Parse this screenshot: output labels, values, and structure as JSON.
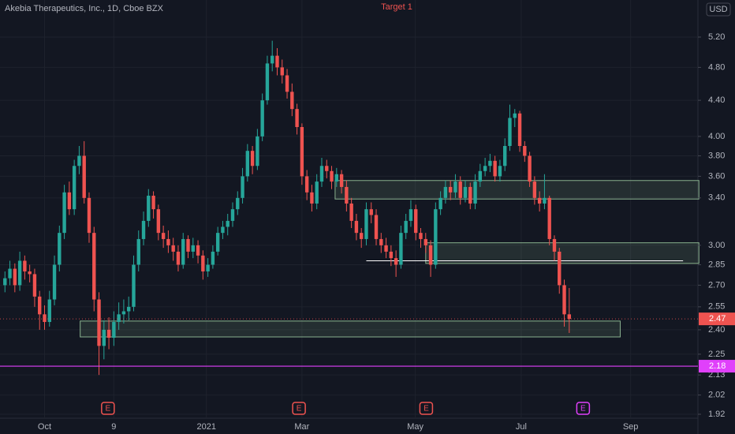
{
  "chart_data": {
    "type": "candlestick",
    "title": "Akebia Therapeutics, Inc., 1D, Cboe BZX",
    "annotation": "Target 1",
    "currency": "USD",
    "log_scale": true,
    "grid": true,
    "up_color": "#26a69a",
    "down_color": "#ef5350",
    "zone_color": "#a5d6a7",
    "xlim": [
      -1,
      140
    ],
    "ylim": [
      1.9,
      5.735
    ],
    "yticks": [
      {
        "value": 5.2,
        "label": "5.20"
      },
      {
        "value": 4.8,
        "label": "4.80"
      },
      {
        "value": 4.4,
        "label": "4.40"
      },
      {
        "value": 4.0,
        "label": "4.00"
      },
      {
        "value": 3.8,
        "label": "3.80"
      },
      {
        "value": 3.6,
        "label": "3.60"
      },
      {
        "value": 3.4,
        "label": "3.40"
      },
      {
        "value": 3.0,
        "label": "3.00"
      },
      2.85,
      {
        "value": 2.7,
        "label": "2.70"
      },
      2.55,
      {
        "value": 2.4,
        "label": "2.40"
      },
      2.25,
      2.13,
      2.02,
      1.92
    ],
    "xticks": [
      {
        "value": 8,
        "label": "Oct"
      },
      {
        "value": 22,
        "label": "9"
      },
      {
        "value": 40.7,
        "label": "2021"
      },
      {
        "value": 60,
        "label": "Mar"
      },
      {
        "value": 82.9,
        "label": "May"
      },
      {
        "value": 104.3,
        "label": "Jul"
      },
      {
        "value": 126.4,
        "label": "Sep"
      }
    ],
    "candles": [
      [
        2.7,
        2.8,
        2.65,
        2.75
      ],
      [
        2.75,
        2.88,
        2.7,
        2.82
      ],
      [
        2.82,
        2.86,
        2.65,
        2.7
      ],
      [
        2.7,
        2.95,
        2.66,
        2.88
      ],
      [
        2.88,
        2.92,
        2.74,
        2.8
      ],
      [
        2.8,
        2.85,
        2.72,
        2.78
      ],
      [
        2.78,
        2.82,
        2.55,
        2.62
      ],
      [
        2.62,
        2.66,
        2.4,
        2.5
      ],
      [
        2.5,
        2.56,
        2.4,
        2.45
      ],
      [
        2.45,
        2.66,
        2.42,
        2.6
      ],
      [
        2.6,
        2.92,
        2.56,
        2.85
      ],
      [
        2.85,
        3.16,
        2.8,
        3.1
      ],
      [
        3.1,
        3.52,
        3.05,
        3.45
      ],
      [
        3.45,
        3.55,
        3.25,
        3.3
      ],
      [
        3.3,
        3.76,
        3.25,
        3.7
      ],
      [
        3.7,
        3.9,
        3.62,
        3.8
      ],
      [
        3.8,
        3.95,
        3.35,
        3.4
      ],
      [
        3.4,
        3.45,
        3.02,
        3.1
      ],
      [
        3.1,
        3.15,
        2.52,
        2.6
      ],
      [
        2.6,
        2.65,
        2.13,
        2.3
      ],
      [
        2.3,
        2.46,
        2.22,
        2.4
      ],
      [
        2.4,
        2.48,
        2.28,
        2.35
      ],
      [
        2.35,
        2.52,
        2.3,
        2.45
      ],
      [
        2.45,
        2.58,
        2.4,
        2.5
      ],
      [
        2.5,
        2.6,
        2.44,
        2.52
      ],
      [
        2.52,
        2.62,
        2.46,
        2.55
      ],
      [
        2.55,
        2.92,
        2.52,
        2.85
      ],
      [
        2.85,
        3.12,
        2.8,
        3.05
      ],
      [
        3.05,
        3.28,
        3.0,
        3.2
      ],
      [
        3.2,
        3.48,
        3.15,
        3.42
      ],
      [
        3.42,
        3.46,
        3.22,
        3.3
      ],
      [
        3.3,
        3.34,
        3.04,
        3.1
      ],
      [
        3.1,
        3.16,
        2.98,
        3.05
      ],
      [
        3.05,
        3.12,
        2.94,
        3.0
      ],
      [
        3.0,
        3.06,
        2.88,
        2.95
      ],
      [
        2.95,
        3.0,
        2.8,
        2.85
      ],
      [
        2.85,
        3.1,
        2.82,
        3.05
      ],
      [
        3.05,
        3.08,
        2.9,
        2.95
      ],
      [
        2.95,
        3.06,
        2.9,
        3.0
      ],
      [
        3.0,
        3.04,
        2.86,
        2.92
      ],
      [
        2.92,
        2.96,
        2.74,
        2.8
      ],
      [
        2.8,
        2.9,
        2.76,
        2.85
      ],
      [
        2.85,
        3.0,
        2.82,
        2.95
      ],
      [
        2.95,
        3.15,
        2.92,
        3.1
      ],
      [
        3.1,
        3.2,
        3.05,
        3.15
      ],
      [
        3.15,
        3.26,
        3.08,
        3.2
      ],
      [
        3.2,
        3.36,
        3.15,
        3.3
      ],
      [
        3.3,
        3.46,
        3.25,
        3.4
      ],
      [
        3.4,
        3.68,
        3.35,
        3.6
      ],
      [
        3.6,
        3.92,
        3.55,
        3.85
      ],
      [
        3.85,
        3.9,
        3.62,
        3.7
      ],
      [
        3.7,
        4.08,
        3.66,
        4.0
      ],
      [
        4.0,
        4.48,
        3.95,
        4.4
      ],
      [
        4.4,
        4.95,
        4.35,
        4.85
      ],
      [
        4.85,
        5.15,
        4.75,
        4.95
      ],
      [
        4.95,
        5.05,
        4.7,
        4.8
      ],
      [
        4.8,
        4.9,
        4.6,
        4.7
      ],
      [
        4.7,
        4.78,
        4.42,
        4.5
      ],
      [
        4.5,
        4.6,
        4.22,
        4.3
      ],
      [
        4.3,
        4.36,
        4.02,
        4.1
      ],
      [
        4.1,
        4.14,
        3.52,
        3.6
      ],
      [
        3.6,
        3.66,
        3.38,
        3.45
      ],
      [
        3.45,
        3.52,
        3.28,
        3.35
      ],
      [
        3.35,
        3.62,
        3.3,
        3.55
      ],
      [
        3.55,
        3.78,
        3.5,
        3.7
      ],
      [
        3.7,
        3.76,
        3.58,
        3.65
      ],
      [
        3.65,
        3.7,
        3.48,
        3.55
      ],
      [
        3.55,
        3.68,
        3.5,
        3.62
      ],
      [
        3.62,
        3.66,
        3.44,
        3.5
      ],
      [
        3.5,
        3.56,
        3.28,
        3.35
      ],
      [
        3.35,
        3.4,
        3.14,
        3.2
      ],
      [
        3.2,
        3.26,
        3.04,
        3.1
      ],
      [
        3.1,
        3.14,
        2.98,
        3.05
      ],
      [
        3.05,
        3.36,
        3.0,
        3.3
      ],
      [
        3.3,
        3.36,
        3.18,
        3.25
      ],
      [
        3.25,
        3.3,
        3.0,
        3.05
      ],
      [
        3.05,
        3.1,
        2.94,
        3.0
      ],
      [
        3.0,
        3.06,
        2.9,
        2.95
      ],
      [
        2.95,
        3.0,
        2.84,
        2.9
      ],
      [
        2.9,
        2.96,
        2.76,
        2.85
      ],
      [
        2.85,
        3.16,
        2.82,
        3.1
      ],
      [
        3.1,
        3.26,
        3.05,
        3.2
      ],
      [
        3.2,
        3.38,
        3.15,
        3.3
      ],
      [
        3.3,
        3.34,
        3.04,
        3.1
      ],
      [
        3.1,
        3.14,
        2.98,
        3.05
      ],
      [
        3.05,
        3.1,
        2.94,
        3.0
      ],
      [
        3.0,
        3.04,
        2.76,
        2.85
      ],
      [
        2.85,
        3.36,
        2.82,
        3.3
      ],
      [
        3.3,
        3.46,
        3.25,
        3.4
      ],
      [
        3.4,
        3.56,
        3.35,
        3.5
      ],
      [
        3.5,
        3.56,
        3.38,
        3.45
      ],
      [
        3.45,
        3.62,
        3.4,
        3.55
      ],
      [
        3.55,
        3.6,
        3.34,
        3.4
      ],
      [
        3.4,
        3.56,
        3.36,
        3.5
      ],
      [
        3.5,
        3.54,
        3.3,
        3.35
      ],
      [
        3.35,
        3.62,
        3.3,
        3.55
      ],
      [
        3.55,
        3.72,
        3.5,
        3.65
      ],
      [
        3.65,
        3.78,
        3.6,
        3.7
      ],
      [
        3.7,
        3.82,
        3.64,
        3.75
      ],
      [
        3.75,
        3.8,
        3.55,
        3.6
      ],
      [
        3.6,
        3.76,
        3.55,
        3.7
      ],
      [
        3.7,
        3.98,
        3.65,
        3.9
      ],
      [
        3.9,
        4.35,
        3.85,
        4.2
      ],
      [
        4.2,
        4.3,
        4.1,
        4.25
      ],
      [
        4.25,
        4.28,
        3.84,
        3.9
      ],
      [
        3.9,
        3.95,
        3.74,
        3.8
      ],
      [
        3.8,
        3.84,
        3.5,
        3.55
      ],
      [
        3.55,
        3.6,
        3.34,
        3.4
      ],
      [
        3.4,
        3.46,
        3.28,
        3.35
      ],
      [
        3.35,
        3.62,
        3.3,
        3.4
      ],
      [
        3.4,
        3.42,
        3.0,
        3.05
      ],
      [
        3.05,
        3.08,
        2.88,
        2.95
      ],
      [
        2.95,
        2.98,
        2.64,
        2.7
      ],
      [
        2.7,
        2.74,
        2.42,
        2.5
      ],
      [
        2.5,
        2.68,
        2.38,
        2.47
      ]
    ],
    "zones": [
      {
        "x": [
          15.2,
          124.3
        ],
        "y": [
          2.355,
          2.456
        ]
      },
      {
        "x": [
          66.7,
          140.2
        ],
        "y": [
          3.39,
          3.56
        ]
      },
      {
        "x": [
          85,
          140.2
        ],
        "y": [
          2.86,
          3.02
        ]
      }
    ],
    "segment": {
      "x": [
        73,
        137
      ],
      "value": 2.88,
      "color": "#ffffff"
    },
    "level": {
      "value": 2.18,
      "color": "#e040fb"
    },
    "last_price": 2.47,
    "earnings": [
      {
        "x": 20.8,
        "label": "E",
        "color": "#ef5350"
      },
      {
        "x": 59.4,
        "label": "E",
        "color": "#ef5350"
      },
      {
        "x": 85.1,
        "label": "E",
        "color": "#ef5350"
      },
      {
        "x": 116.8,
        "label": "E",
        "color": "#e040fb"
      }
    ]
  }
}
